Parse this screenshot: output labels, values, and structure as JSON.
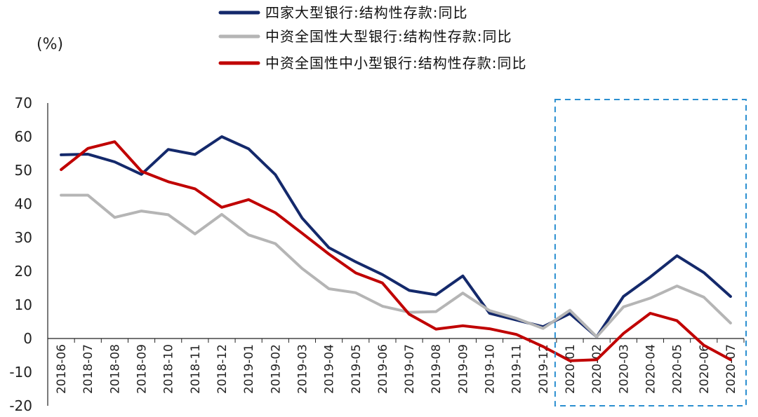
{
  "chart_data": {
    "type": "line",
    "ylabel": "(%)",
    "ylim": [
      -20,
      70
    ],
    "yticks": [
      70,
      60,
      50,
      40,
      30,
      20,
      10,
      0,
      -10,
      -20
    ],
    "categories": [
      "2018-06",
      "2018-07",
      "2018-08",
      "2018-09",
      "2018-10",
      "2018-11",
      "2018-12",
      "2019-01",
      "2019-02",
      "2019-03",
      "2019-04",
      "2019-05",
      "2019-06",
      "2019-07",
      "2019-08",
      "2019-09",
      "2019-10",
      "2019-11",
      "2019-12",
      "2020-01",
      "2020-02",
      "2020-03",
      "2020-04",
      "2020-05",
      "2020-06",
      "2020-07"
    ],
    "series": [
      {
        "name": "四家大型银行:结构性存款:同比",
        "color": "#14296b",
        "values": [
          54.6,
          54.8,
          52.5,
          48.8,
          56.2,
          54.7,
          60.0,
          56.4,
          48.7,
          35.8,
          27.0,
          22.8,
          19.0,
          14.3,
          13.0,
          18.6,
          7.5,
          5.5,
          3.5,
          7.4,
          0.5,
          12.5,
          18.3,
          24.6,
          19.6,
          12.5
        ]
      },
      {
        "name": "中资全国性大型银行:结构性存款:同比",
        "color": "#b5b5b5",
        "values": [
          42.6,
          42.6,
          36.0,
          37.9,
          36.8,
          31.1,
          36.9,
          30.8,
          28.2,
          20.8,
          14.8,
          13.6,
          9.6,
          7.8,
          8.0,
          13.5,
          8.3,
          6.0,
          3.0,
          8.4,
          0.5,
          9.4,
          12.0,
          15.6,
          12.3,
          4.6
        ]
      },
      {
        "name": "中资全国性中小型银行:结构性存款:同比",
        "color": "#c00000",
        "values": [
          50.2,
          56.5,
          58.5,
          49.7,
          46.6,
          44.5,
          39.0,
          41.3,
          37.4,
          31.3,
          25.1,
          19.5,
          16.5,
          7.2,
          2.8,
          3.8,
          2.9,
          1.2,
          -2.4,
          -6.6,
          -6.3,
          1.5,
          7.5,
          5.3,
          -2.0,
          -6.3
        ]
      }
    ],
    "highlight_range": [
      "2020-01",
      "2020-07"
    ]
  }
}
